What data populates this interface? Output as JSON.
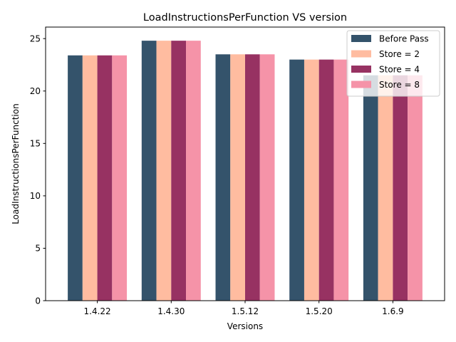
{
  "chart_data": {
    "type": "bar",
    "title": "LoadInstructionsPerFunction VS version",
    "xlabel": "Versions",
    "ylabel": "LoadInstructionsPerFunction",
    "categories": [
      "1.4.22",
      "1.4.30",
      "1.5.12",
      "1.5.20",
      "1.6.9"
    ],
    "ylim": [
      0,
      26.1
    ],
    "yticks": [
      0,
      5,
      10,
      15,
      20,
      25
    ],
    "grid": false,
    "legend_position": "top-right",
    "series": [
      {
        "name": "Before Pass",
        "color": "#34536b",
        "values": [
          23.4,
          24.8,
          23.5,
          23.0,
          21.5
        ]
      },
      {
        "name": "Store = 2",
        "color": "#ffbca0",
        "values": [
          23.4,
          24.8,
          23.5,
          23.0,
          21.5
        ]
      },
      {
        "name": "Store = 4",
        "color": "#973262",
        "values": [
          23.4,
          24.8,
          23.5,
          23.0,
          21.5
        ]
      },
      {
        "name": "Store = 8",
        "color": "#f593a8",
        "values": [
          23.4,
          24.8,
          23.5,
          23.0,
          21.5
        ]
      }
    ]
  }
}
